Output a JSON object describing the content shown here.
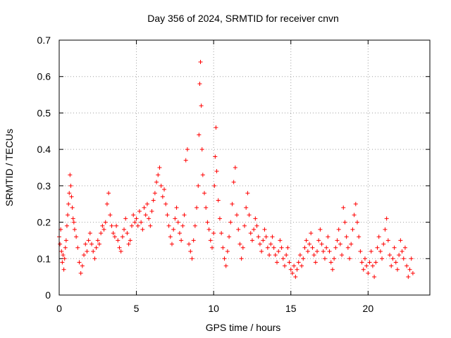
{
  "chart_data": {
    "type": "scatter",
    "title": "Day 356 of 2024, SRMTID for receiver cnvn",
    "xlabel": "GPS time / hours",
    "ylabel": "SRMTID / TECUs",
    "xlim": [
      0,
      24
    ],
    "ylim": [
      0,
      0.7
    ],
    "xticks": [
      0,
      5,
      10,
      15,
      20
    ],
    "yticks": [
      0,
      0.1,
      0.2,
      0.3,
      0.4,
      0.5,
      0.6,
      0.7
    ],
    "xtick_labels": [
      "0",
      "5",
      "10",
      "15",
      "20"
    ],
    "ytick_labels": [
      "0",
      "0.1",
      "0.2",
      "0.3",
      "0.4",
      "0.5",
      "0.6",
      "0.7"
    ],
    "grid": true,
    "marker": "+",
    "color": "#ff0000",
    "series": [
      {
        "name": "SRMTID",
        "points": [
          [
            0.0,
            0.16
          ],
          [
            0.05,
            0.14
          ],
          [
            0.1,
            0.18
          ],
          [
            0.15,
            0.12
          ],
          [
            0.2,
            0.09
          ],
          [
            0.25,
            0.11
          ],
          [
            0.3,
            0.07
          ],
          [
            0.35,
            0.1
          ],
          [
            0.4,
            0.13
          ],
          [
            0.45,
            0.15
          ],
          [
            0.5,
            0.19
          ],
          [
            0.55,
            0.22
          ],
          [
            0.6,
            0.25
          ],
          [
            0.65,
            0.28
          ],
          [
            0.7,
            0.33
          ],
          [
            0.75,
            0.3
          ],
          [
            0.8,
            0.27
          ],
          [
            0.85,
            0.24
          ],
          [
            0.9,
            0.21
          ],
          [
            0.95,
            0.2
          ],
          [
            1.0,
            0.18
          ],
          [
            1.1,
            0.16
          ],
          [
            1.2,
            0.13
          ],
          [
            1.3,
            0.09
          ],
          [
            1.4,
            0.06
          ],
          [
            1.5,
            0.08
          ],
          [
            1.6,
            0.11
          ],
          [
            1.7,
            0.14
          ],
          [
            1.8,
            0.12
          ],
          [
            1.9,
            0.15
          ],
          [
            2.0,
            0.17
          ],
          [
            2.1,
            0.14
          ],
          [
            2.2,
            0.12
          ],
          [
            2.3,
            0.1
          ],
          [
            2.4,
            0.13
          ],
          [
            2.5,
            0.15
          ],
          [
            2.6,
            0.14
          ],
          [
            2.7,
            0.17
          ],
          [
            2.8,
            0.19
          ],
          [
            2.9,
            0.18
          ],
          [
            3.0,
            0.2
          ],
          [
            3.1,
            0.25
          ],
          [
            3.2,
            0.28
          ],
          [
            3.3,
            0.22
          ],
          [
            3.4,
            0.19
          ],
          [
            3.5,
            0.17
          ],
          [
            3.6,
            0.16
          ],
          [
            3.7,
            0.19
          ],
          [
            3.8,
            0.15
          ],
          [
            3.9,
            0.13
          ],
          [
            4.0,
            0.12
          ],
          [
            4.1,
            0.16
          ],
          [
            4.2,
            0.18
          ],
          [
            4.3,
            0.21
          ],
          [
            4.4,
            0.17
          ],
          [
            4.5,
            0.14
          ],
          [
            4.6,
            0.15
          ],
          [
            4.7,
            0.19
          ],
          [
            4.8,
            0.22
          ],
          [
            4.9,
            0.2
          ],
          [
            5.0,
            0.21
          ],
          [
            5.1,
            0.19
          ],
          [
            5.2,
            0.23
          ],
          [
            5.3,
            0.2
          ],
          [
            5.4,
            0.18
          ],
          [
            5.5,
            0.24
          ],
          [
            5.6,
            0.22
          ],
          [
            5.7,
            0.25
          ],
          [
            5.8,
            0.21
          ],
          [
            5.9,
            0.19
          ],
          [
            6.0,
            0.23
          ],
          [
            6.1,
            0.26
          ],
          [
            6.2,
            0.28
          ],
          [
            6.3,
            0.31
          ],
          [
            6.4,
            0.33
          ],
          [
            6.5,
            0.35
          ],
          [
            6.6,
            0.3
          ],
          [
            6.7,
            0.27
          ],
          [
            6.8,
            0.29
          ],
          [
            6.9,
            0.25
          ],
          [
            7.0,
            0.22
          ],
          [
            7.1,
            0.19
          ],
          [
            7.2,
            0.16
          ],
          [
            7.3,
            0.14
          ],
          [
            7.4,
            0.18
          ],
          [
            7.5,
            0.21
          ],
          [
            7.6,
            0.24
          ],
          [
            7.7,
            0.2
          ],
          [
            7.8,
            0.17
          ],
          [
            7.9,
            0.15
          ],
          [
            8.0,
            0.19
          ],
          [
            8.1,
            0.22
          ],
          [
            8.2,
            0.37
          ],
          [
            8.3,
            0.4
          ],
          [
            8.4,
            0.14
          ],
          [
            8.5,
            0.12
          ],
          [
            8.6,
            0.1
          ],
          [
            8.7,
            0.15
          ],
          [
            8.8,
            0.19
          ],
          [
            8.9,
            0.24
          ],
          [
            9.0,
            0.3
          ],
          [
            9.05,
            0.44
          ],
          [
            9.1,
            0.58
          ],
          [
            9.15,
            0.64
          ],
          [
            9.2,
            0.52
          ],
          [
            9.25,
            0.4
          ],
          [
            9.3,
            0.33
          ],
          [
            9.4,
            0.28
          ],
          [
            9.5,
            0.24
          ],
          [
            9.6,
            0.2
          ],
          [
            9.7,
            0.18
          ],
          [
            9.8,
            0.15
          ],
          [
            9.9,
            0.13
          ],
          [
            10.0,
            0.17
          ],
          [
            10.05,
            0.3
          ],
          [
            10.1,
            0.38
          ],
          [
            10.15,
            0.46
          ],
          [
            10.2,
            0.34
          ],
          [
            10.3,
            0.26
          ],
          [
            10.4,
            0.21
          ],
          [
            10.5,
            0.17
          ],
          [
            10.6,
            0.13
          ],
          [
            10.7,
            0.1
          ],
          [
            10.8,
            0.08
          ],
          [
            10.9,
            0.12
          ],
          [
            11.0,
            0.16
          ],
          [
            11.1,
            0.2
          ],
          [
            11.2,
            0.25
          ],
          [
            11.3,
            0.31
          ],
          [
            11.4,
            0.35
          ],
          [
            11.5,
            0.22
          ],
          [
            11.6,
            0.18
          ],
          [
            11.7,
            0.14
          ],
          [
            11.8,
            0.1
          ],
          [
            11.9,
            0.13
          ],
          [
            12.0,
            0.19
          ],
          [
            12.1,
            0.24
          ],
          [
            12.2,
            0.28
          ],
          [
            12.3,
            0.22
          ],
          [
            12.4,
            0.17
          ],
          [
            12.5,
            0.15
          ],
          [
            12.6,
            0.18
          ],
          [
            12.7,
            0.21
          ],
          [
            12.8,
            0.19
          ],
          [
            12.9,
            0.16
          ],
          [
            13.0,
            0.14
          ],
          [
            13.1,
            0.12
          ],
          [
            13.2,
            0.15
          ],
          [
            13.3,
            0.18
          ],
          [
            13.4,
            0.16
          ],
          [
            13.5,
            0.13
          ],
          [
            13.6,
            0.11
          ],
          [
            13.7,
            0.14
          ],
          [
            13.8,
            0.16
          ],
          [
            13.9,
            0.13
          ],
          [
            14.0,
            0.11
          ],
          [
            14.1,
            0.09
          ],
          [
            14.2,
            0.12
          ],
          [
            14.3,
            0.15
          ],
          [
            14.4,
            0.13
          ],
          [
            14.5,
            0.1
          ],
          [
            14.6,
            0.08
          ],
          [
            14.7,
            0.11
          ],
          [
            14.8,
            0.13
          ],
          [
            14.9,
            0.09
          ],
          [
            15.0,
            0.07
          ],
          [
            15.1,
            0.06
          ],
          [
            15.2,
            0.08
          ],
          [
            15.3,
            0.05
          ],
          [
            15.4,
            0.07
          ],
          [
            15.5,
            0.09
          ],
          [
            15.6,
            0.11
          ],
          [
            15.7,
            0.08
          ],
          [
            15.8,
            0.1
          ],
          [
            15.9,
            0.13
          ],
          [
            16.0,
            0.15
          ],
          [
            16.1,
            0.12
          ],
          [
            16.2,
            0.14
          ],
          [
            16.3,
            0.17
          ],
          [
            16.4,
            0.13
          ],
          [
            16.5,
            0.11
          ],
          [
            16.6,
            0.09
          ],
          [
            16.7,
            0.12
          ],
          [
            16.8,
            0.15
          ],
          [
            16.9,
            0.18
          ],
          [
            17.0,
            0.14
          ],
          [
            17.1,
            0.12
          ],
          [
            17.2,
            0.1
          ],
          [
            17.3,
            0.13
          ],
          [
            17.4,
            0.16
          ],
          [
            17.5,
            0.12
          ],
          [
            17.6,
            0.09
          ],
          [
            17.7,
            0.07
          ],
          [
            17.8,
            0.1
          ],
          [
            17.9,
            0.13
          ],
          [
            18.0,
            0.15
          ],
          [
            18.1,
            0.18
          ],
          [
            18.2,
            0.14
          ],
          [
            18.3,
            0.11
          ],
          [
            18.4,
            0.24
          ],
          [
            18.5,
            0.2
          ],
          [
            18.6,
            0.16
          ],
          [
            18.7,
            0.13
          ],
          [
            18.8,
            0.1
          ],
          [
            18.9,
            0.14
          ],
          [
            19.0,
            0.18
          ],
          [
            19.1,
            0.22
          ],
          [
            19.2,
            0.25
          ],
          [
            19.3,
            0.2
          ],
          [
            19.4,
            0.16
          ],
          [
            19.5,
            0.12
          ],
          [
            19.6,
            0.09
          ],
          [
            19.7,
            0.07
          ],
          [
            19.8,
            0.1
          ],
          [
            19.9,
            0.08
          ],
          [
            20.0,
            0.06
          ],
          [
            20.1,
            0.09
          ],
          [
            20.2,
            0.12
          ],
          [
            20.3,
            0.08
          ],
          [
            20.4,
            0.05
          ],
          [
            20.5,
            0.09
          ],
          [
            20.6,
            0.13
          ],
          [
            20.7,
            0.16
          ],
          [
            20.8,
            0.12
          ],
          [
            20.9,
            0.1
          ],
          [
            21.0,
            0.14
          ],
          [
            21.1,
            0.18
          ],
          [
            21.2,
            0.21
          ],
          [
            21.3,
            0.15
          ],
          [
            21.4,
            0.11
          ],
          [
            21.5,
            0.08
          ],
          [
            21.6,
            0.1
          ],
          [
            21.7,
            0.13
          ],
          [
            21.8,
            0.09
          ],
          [
            21.9,
            0.07
          ],
          [
            22.0,
            0.11
          ],
          [
            22.1,
            0.15
          ],
          [
            22.2,
            0.12
          ],
          [
            22.3,
            0.1
          ],
          [
            22.4,
            0.13
          ],
          [
            22.5,
            0.08
          ],
          [
            22.6,
            0.05
          ],
          [
            22.7,
            0.07
          ],
          [
            22.8,
            0.1
          ],
          [
            22.9,
            0.06
          ]
        ]
      }
    ]
  }
}
